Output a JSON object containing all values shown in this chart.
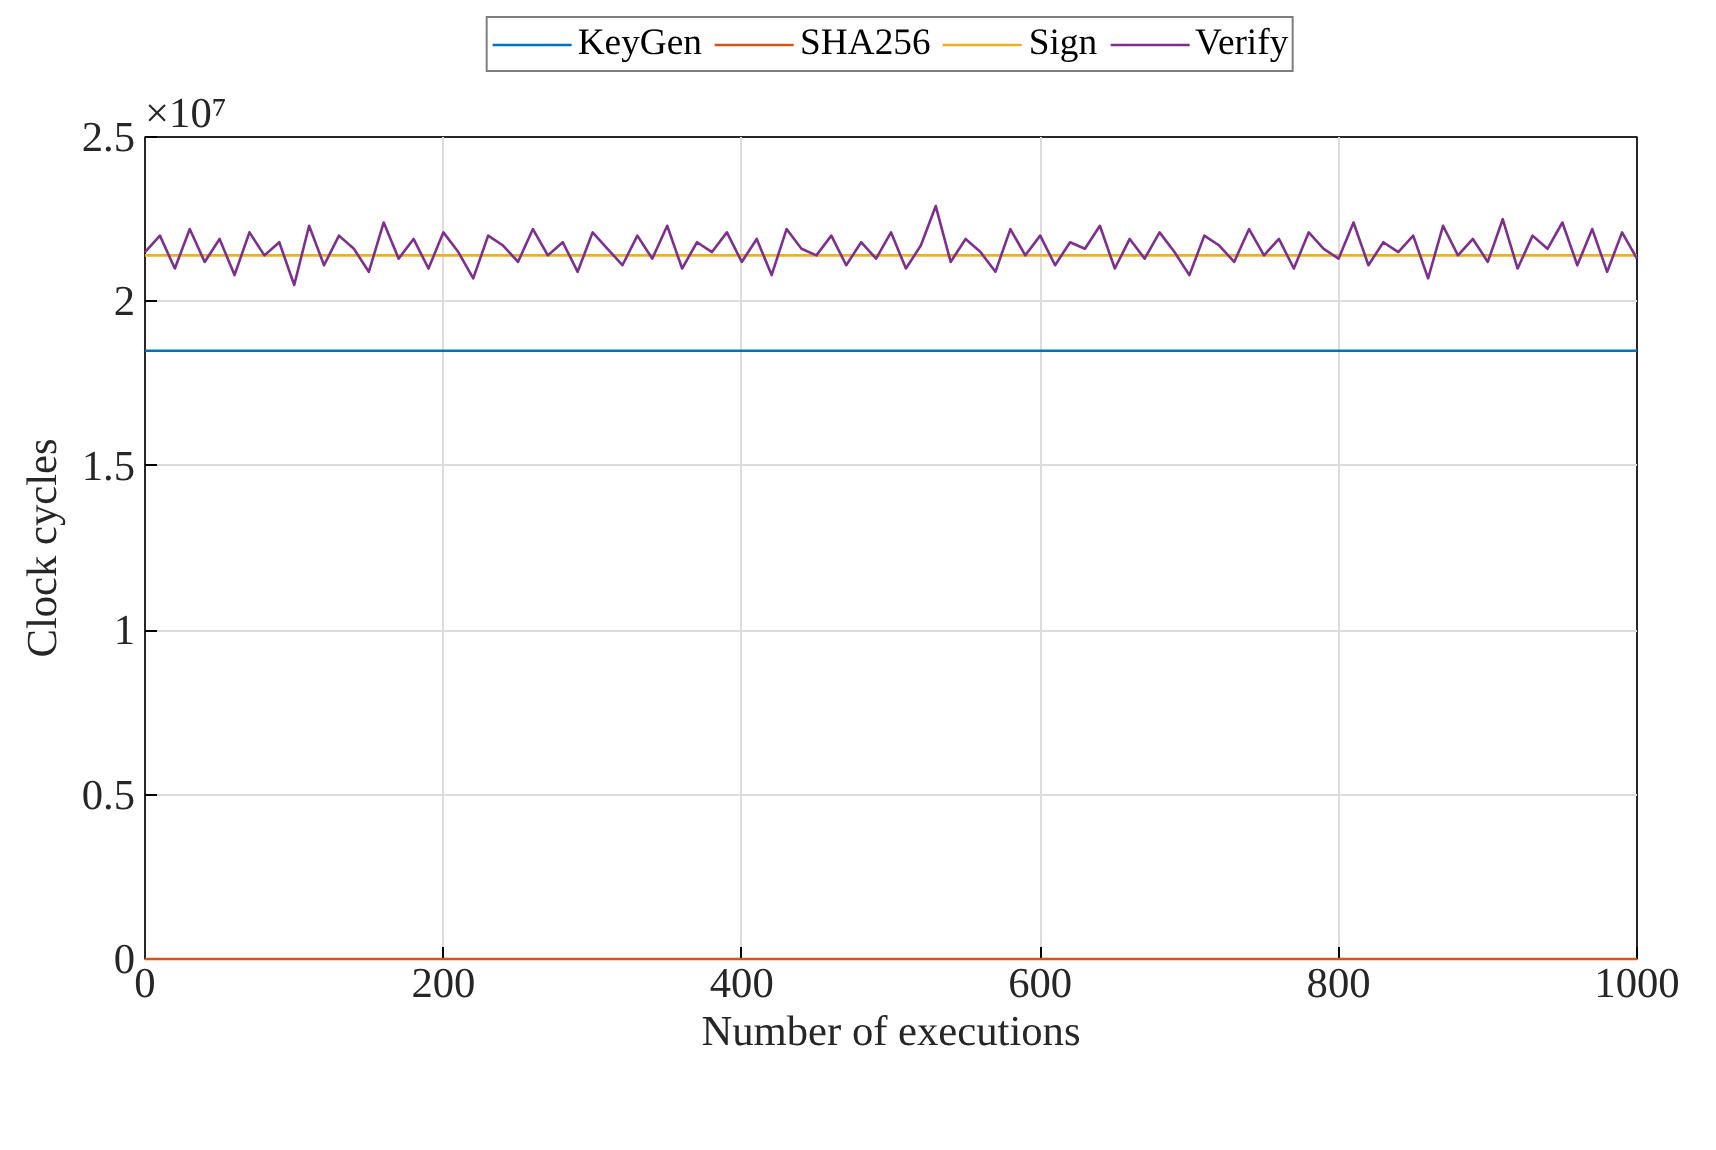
{
  "chart_data": {
    "type": "line",
    "xlabel": "Number of executions",
    "ylabel": "Clock cycles",
    "annotations": [
      "×10⁷"
    ],
    "xlim": [
      0,
      1000
    ],
    "xticks": [
      0,
      200,
      400,
      600,
      800,
      1000
    ],
    "ylim": [
      0,
      2.5
    ],
    "yticks": [
      0,
      0.5,
      1,
      1.5,
      2,
      2.5
    ],
    "grid": true,
    "legend": "top",
    "series": [
      {
        "name": "KeyGen",
        "color": "#0072bd",
        "x": [
          0,
          1000
        ],
        "values": [
          1.85,
          1.85
        ]
      },
      {
        "name": "SHA256",
        "color": "#d95319",
        "x": [
          0,
          1000
        ],
        "values": [
          0,
          0
        ]
      },
      {
        "name": "Sign",
        "color": "#edb120",
        "x": [
          0,
          1000
        ],
        "values": [
          2.14,
          2.14
        ]
      },
      {
        "name": "Verify",
        "color": "#7e2f8e",
        "x": [
          0,
          10,
          20,
          30,
          40,
          50,
          60,
          70,
          80,
          90,
          100,
          110,
          120,
          130,
          140,
          150,
          160,
          170,
          180,
          190,
          200,
          210,
          220,
          230,
          240,
          250,
          260,
          270,
          280,
          290,
          300,
          310,
          320,
          330,
          340,
          350,
          360,
          370,
          380,
          390,
          400,
          410,
          420,
          430,
          440,
          450,
          460,
          470,
          480,
          490,
          500,
          510,
          520,
          530,
          540,
          550,
          560,
          570,
          580,
          590,
          600,
          610,
          620,
          630,
          640,
          650,
          660,
          670,
          680,
          690,
          700,
          710,
          720,
          730,
          740,
          750,
          760,
          770,
          780,
          790,
          800,
          810,
          820,
          830,
          840,
          850,
          860,
          870,
          880,
          890,
          900,
          910,
          920,
          930,
          940,
          950,
          960,
          970,
          980,
          990,
          1000
        ],
        "values": [
          2.15,
          2.2,
          2.1,
          2.22,
          2.12,
          2.19,
          2.08,
          2.21,
          2.14,
          2.18,
          2.05,
          2.23,
          2.11,
          2.2,
          2.16,
          2.09,
          2.24,
          2.13,
          2.19,
          2.1,
          2.21,
          2.15,
          2.07,
          2.2,
          2.17,
          2.12,
          2.22,
          2.14,
          2.18,
          2.09,
          2.21,
          2.16,
          2.11,
          2.2,
          2.13,
          2.23,
          2.1,
          2.18,
          2.15,
          2.21,
          2.12,
          2.19,
          2.08,
          2.22,
          2.16,
          2.14,
          2.2,
          2.11,
          2.18,
          2.13,
          2.21,
          2.1,
          2.17,
          2.29,
          2.12,
          2.19,
          2.15,
          2.09,
          2.22,
          2.14,
          2.2,
          2.11,
          2.18,
          2.16,
          2.23,
          2.1,
          2.19,
          2.13,
          2.21,
          2.15,
          2.08,
          2.2,
          2.17,
          2.12,
          2.22,
          2.14,
          2.19,
          2.1,
          2.21,
          2.16,
          2.13,
          2.24,
          2.11,
          2.18,
          2.15,
          2.2,
          2.07,
          2.23,
          2.14,
          2.19,
          2.12,
          2.25,
          2.1,
          2.2,
          2.16,
          2.24,
          2.11,
          2.22,
          2.09,
          2.21,
          2.13
        ]
      }
    ]
  }
}
